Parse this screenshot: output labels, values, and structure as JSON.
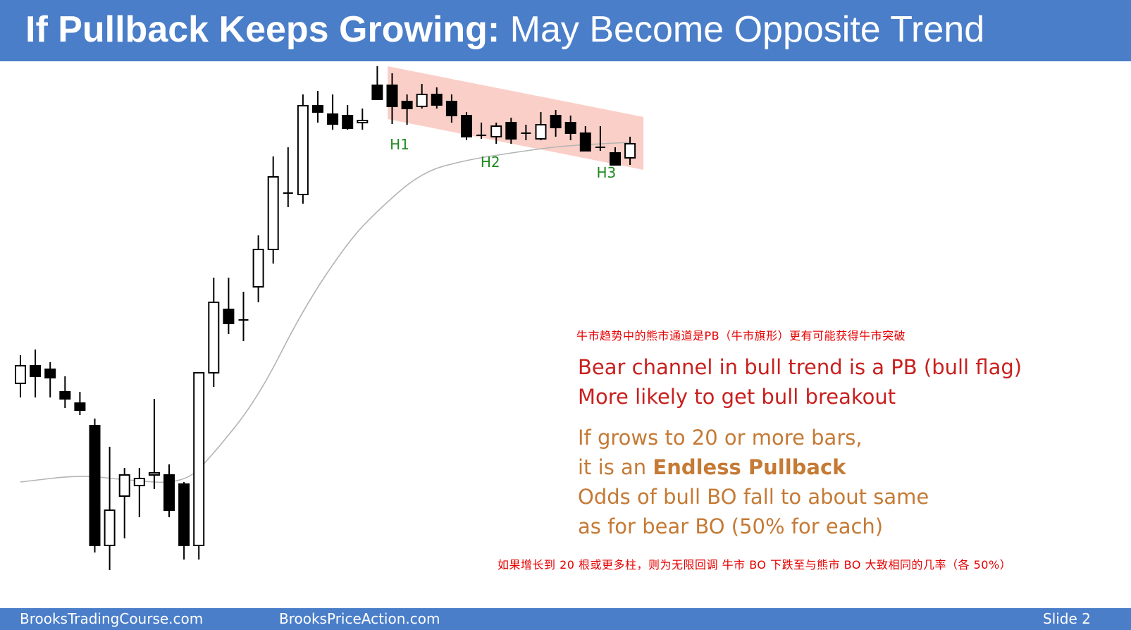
{
  "header": {
    "title_bold": "If Pullback Keeps Growing:",
    "title_rest": " May Become Opposite Trend",
    "background": "#4a7ec9"
  },
  "chart_data": {
    "type": "candlestick",
    "bars": [
      {
        "o": 30,
        "h": 70,
        "l": 10,
        "c": 55
      },
      {
        "o": 55,
        "h": 78,
        "l": 10,
        "c": 40
      },
      {
        "o": 50,
        "h": 60,
        "l": 10,
        "c": 38
      },
      {
        "o": 18,
        "h": 40,
        "l": -5,
        "c": 8
      },
      {
        "o": 2,
        "h": 18,
        "l": -15,
        "c": -8
      },
      {
        "o": -30,
        "h": -20,
        "l": -210,
        "c": -200
      },
      {
        "o": -200,
        "h": -60,
        "l": -235,
        "c": -150
      },
      {
        "o": -130,
        "h": -90,
        "l": -190,
        "c": -100
      },
      {
        "o": -115,
        "h": -90,
        "l": -160,
        "c": -105
      },
      {
        "o": -100,
        "h": 8,
        "l": -120,
        "c": -97
      },
      {
        "o": -100,
        "h": -85,
        "l": -160,
        "c": -150
      },
      {
        "o": -113,
        "h": -110,
        "l": -220,
        "c": -200
      },
      {
        "o": -200,
        "h": -110,
        "l": -220,
        "c": 45
      },
      {
        "o": 45,
        "h": 180,
        "l": 25,
        "c": 145
      },
      {
        "o": 135,
        "h": 180,
        "l": 100,
        "c": 115
      },
      {
        "o": 120,
        "h": 160,
        "l": 90,
        "c": 120
      },
      {
        "o": 167,
        "h": 240,
        "l": 145,
        "c": 220
      },
      {
        "o": 220,
        "h": 352,
        "l": 200,
        "c": 323
      },
      {
        "o": 300,
        "h": 365,
        "l": 280,
        "c": 300
      },
      {
        "o": 298,
        "h": 440,
        "l": 285,
        "c": 424
      },
      {
        "o": 424,
        "h": 445,
        "l": 400,
        "c": 415
      },
      {
        "o": 412,
        "h": 440,
        "l": 390,
        "c": 398
      },
      {
        "o": 410,
        "h": 425,
        "l": 390,
        "c": 392
      },
      {
        "o": 400,
        "h": 420,
        "l": 390,
        "c": 403
      },
      {
        "o": 453,
        "h": 480,
        "l": 433,
        "c": 433
      },
      {
        "o": 453,
        "h": 470,
        "l": 398,
        "c": 423
      },
      {
        "o": 430,
        "h": 440,
        "l": 397,
        "c": 420
      },
      {
        "o": 423,
        "h": 455,
        "l": 420,
        "c": 440
      },
      {
        "o": 440,
        "h": 450,
        "l": 420,
        "c": 425
      },
      {
        "o": 430,
        "h": 440,
        "l": 400,
        "c": 410
      },
      {
        "o": 410,
        "h": 415,
        "l": 375,
        "c": 380
      },
      {
        "o": 382,
        "h": 400,
        "l": 377,
        "c": 382
      },
      {
        "o": 380,
        "h": 400,
        "l": 370,
        "c": 395
      },
      {
        "o": 400,
        "h": 407,
        "l": 370,
        "c": 377
      },
      {
        "o": 385,
        "h": 397,
        "l": 375,
        "c": 385
      },
      {
        "o": 377,
        "h": 415,
        "l": 375,
        "c": 397
      },
      {
        "o": 410,
        "h": 418,
        "l": 380,
        "c": 393
      },
      {
        "o": 400,
        "h": 410,
        "l": 375,
        "c": 385
      },
      {
        "o": 385,
        "h": 395,
        "l": 360,
        "c": 360
      },
      {
        "o": 365,
        "h": 395,
        "l": 360,
        "c": 365
      },
      {
        "o": 357,
        "h": 365,
        "l": 340,
        "c": 340
      },
      {
        "o": 350,
        "h": 380,
        "l": 340,
        "c": 370
      }
    ],
    "ema": [
      [
        0,
        -110
      ],
      [
        4,
        -100
      ],
      [
        7,
        -107
      ],
      [
        11,
        -113
      ],
      [
        13,
        -70
      ],
      [
        16,
        10
      ],
      [
        19,
        135
      ],
      [
        22,
        230
      ],
      [
        24,
        275
      ],
      [
        27,
        330
      ],
      [
        30,
        347
      ],
      [
        33,
        357
      ],
      [
        36,
        366
      ],
      [
        39,
        370
      ],
      [
        41,
        372
      ]
    ],
    "channel": [
      [
        24.7,
        405
      ],
      [
        24.7,
        480
      ],
      [
        41.9,
        408
      ],
      [
        41.9,
        333
      ]
    ],
    "colors": {
      "bull_body": "#ffffff",
      "bear_body": "#000000",
      "wick": "#000000",
      "ema": "#b4b4b4",
      "channel": "#f9c7bd"
    },
    "labels": [
      {
        "text": "H1",
        "bar": 25.5,
        "price": 385
      },
      {
        "text": "H2",
        "bar": 31.6,
        "price": 360
      },
      {
        "text": "H3",
        "bar": 39.4,
        "price": 345
      }
    ],
    "label_color": "#1e8a1e"
  },
  "text_block": {
    "cn_top": "牛市趋势中的熊市通道是PB（牛市旗形）更有可能获得牛市突破",
    "red_line_1": "Bear channel in bull trend is a PB (bull flag)",
    "red_line_2": "More likely to get bull breakout",
    "orange_line_1": "If grows to 20 or more bars,",
    "orange_line_2_prefix": "it is an ",
    "orange_line_2_bold": "Endless Pullback",
    "orange_line_3": "Odds of bull BO fall to about same",
    "orange_line_4": "as for bear BO (50% for each)",
    "cn_bottom": "如果增长到 20 根或更多柱，则为无限回调 牛市 BO 下跌至与熊市 BO 大致相同的几率（各 50%）"
  },
  "footer": {
    "left": "BrooksTradingCourse.com",
    "center": "BrooksPriceAction.com",
    "right": "Slide  2"
  }
}
